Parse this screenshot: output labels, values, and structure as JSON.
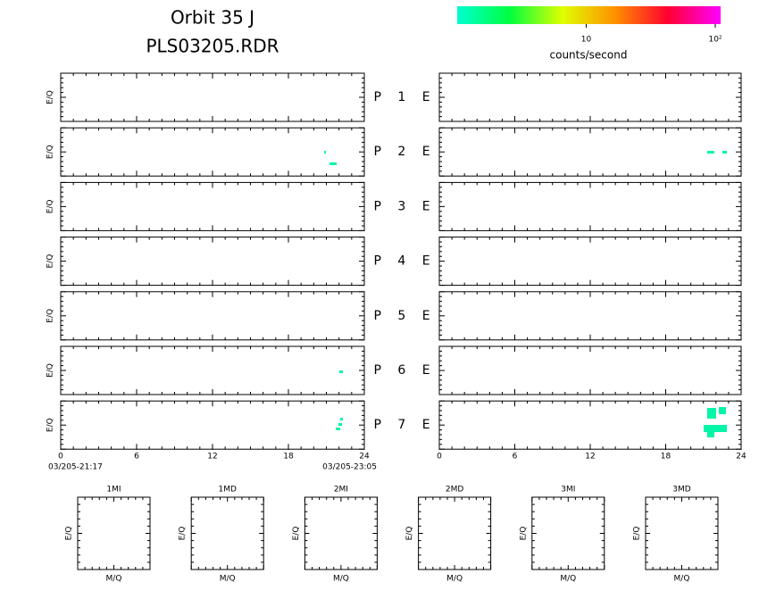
{
  "title": [
    "Orbit 35 J",
    "PLS03205.RDR"
  ],
  "colorbar": {
    "label": "counts/second",
    "log": true,
    "lim": [
      1,
      110
    ],
    "ticks": [
      {
        "value": 10,
        "label": "10"
      },
      {
        "value": 100,
        "label": "10²"
      }
    ],
    "colors": [
      "#00ffd0",
      "#00ff40",
      "#e0ff00",
      "#ff9000",
      "#ff0030",
      "#ff00ff"
    ]
  },
  "rows": [
    "P 1 E",
    "P 2 E",
    "P 3 E",
    "P 4 E",
    "P 5 E",
    "P 6 E",
    "P 7 E"
  ],
  "y_label": "E/Q",
  "xlim": [
    0,
    24
  ],
  "xticks": [
    0,
    6,
    12,
    18,
    24
  ],
  "time_start": "03/205-21:17",
  "time_end": "03/205-23:05",
  "small_panels": [
    "1MI",
    "1MD",
    "2MI",
    "2MD",
    "3MI",
    "3MD"
  ],
  "small_x_label": "M/Q",
  "small_y_label": "E/Q"
}
